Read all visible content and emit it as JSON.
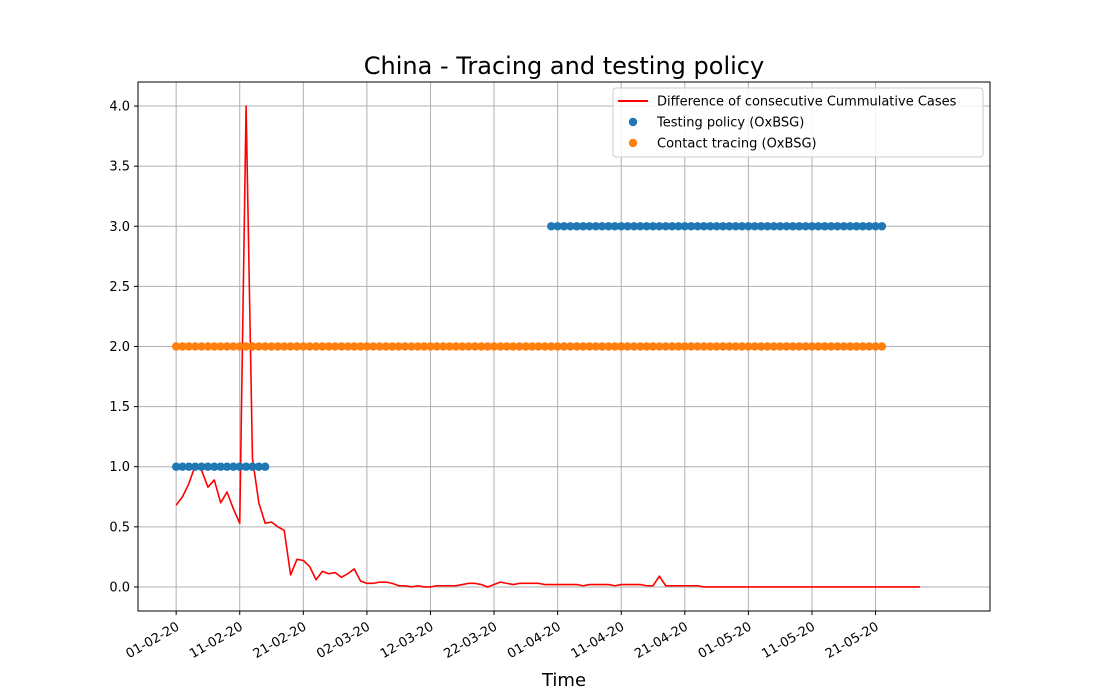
{
  "chart_data": {
    "type": "line",
    "title": "China - Tracing and testing policy",
    "xlabel": "Time",
    "ylabel": "",
    "ylim": [
      -0.2,
      4.2
    ],
    "yticks": [
      0.0,
      0.5,
      1.0,
      1.5,
      2.0,
      2.5,
      3.0,
      3.5,
      4.0
    ],
    "ytick_labels": [
      "0.0",
      "0.5",
      "1.0",
      "1.5",
      "2.0",
      "2.5",
      "3.0",
      "3.5",
      "4.0"
    ],
    "xlim": [
      "2020-01-26",
      "2020-06-08"
    ],
    "xticks": [
      "2020-02-01",
      "2020-02-11",
      "2020-02-21",
      "2020-03-02",
      "2020-03-12",
      "2020-03-22",
      "2020-04-01",
      "2020-04-11",
      "2020-04-21",
      "2020-05-01",
      "2020-05-11",
      "2020-05-21"
    ],
    "xtick_labels": [
      "01-02-20",
      "11-02-20",
      "21-02-20",
      "02-03-20",
      "12-03-20",
      "22-03-20",
      "01-04-20",
      "11-04-20",
      "21-04-20",
      "01-05-20",
      "11-05-20",
      "21-05-20"
    ],
    "grid": true,
    "legend_position": "top-right",
    "series": [
      {
        "name": "Difference of consecutive Cummulative Cases",
        "kind": "line",
        "color": "#ff0000",
        "start": "2020-02-01",
        "values": [
          0.68,
          0.75,
          0.86,
          1.01,
          0.97,
          0.83,
          0.89,
          0.7,
          0.79,
          0.65,
          0.53,
          4.0,
          1.07,
          0.7,
          0.53,
          0.54,
          0.5,
          0.47,
          0.1,
          0.23,
          0.22,
          0.17,
          0.06,
          0.13,
          0.11,
          0.12,
          0.08,
          0.11,
          0.15,
          0.05,
          0.03,
          0.03,
          0.04,
          0.04,
          0.03,
          0.01,
          0.01,
          0.0,
          0.01,
          0.0,
          0.0,
          0.01,
          0.01,
          0.01,
          0.01,
          0.02,
          0.03,
          0.03,
          0.02,
          0.0,
          0.02,
          0.04,
          0.03,
          0.02,
          0.03,
          0.03,
          0.03,
          0.03,
          0.02,
          0.02,
          0.02,
          0.02,
          0.02,
          0.02,
          0.01,
          0.02,
          0.02,
          0.02,
          0.02,
          0.01,
          0.02,
          0.02,
          0.02,
          0.02,
          0.01,
          0.01,
          0.09,
          0.01,
          0.01,
          0.01,
          0.01,
          0.01,
          0.01,
          0.0,
          0.0,
          0.0,
          0.0,
          0.0,
          0.0,
          0.0,
          0.0,
          0.0,
          0.0,
          0.0,
          0.0,
          0.0,
          0.0,
          0.0,
          0.0,
          0.0,
          0.0,
          0.0,
          0.0,
          0.0,
          0.0,
          0.0,
          0.0,
          0.0,
          0.0,
          0.0,
          0.0,
          0.0,
          0.0,
          0.0,
          0.0,
          0.0,
          0.0,
          0.0
        ]
      },
      {
        "name": "Testing policy (OxBSG)",
        "kind": "scatter",
        "color": "#1f77b4",
        "segments": [
          {
            "start": "2020-02-01",
            "end": "2020-02-15",
            "value": 1
          },
          {
            "start": "2020-03-31",
            "end": "2020-05-22",
            "value": 3
          }
        ]
      },
      {
        "name": "Contact tracing (OxBSG)",
        "kind": "scatter",
        "color": "#ff7f0e",
        "segments": [
          {
            "start": "2020-02-01",
            "end": "2020-05-22",
            "value": 2
          }
        ]
      }
    ]
  }
}
